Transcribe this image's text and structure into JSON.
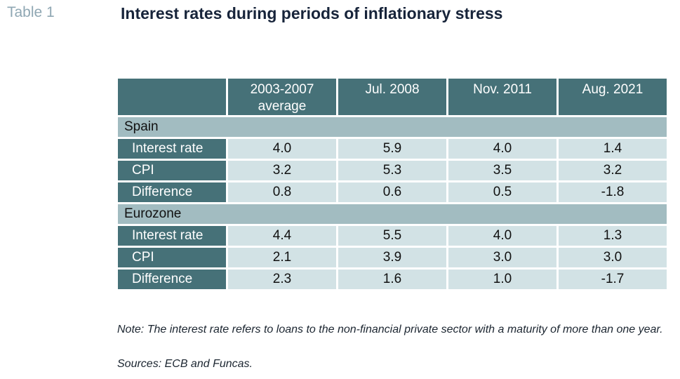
{
  "table_number": "Table 1",
  "title": "Interest rates during periods of inflationary stress",
  "table": {
    "columns": [
      {
        "line1": "2003-2007",
        "line2": "average"
      },
      {
        "line1": "Jul. 2008",
        "line2": ""
      },
      {
        "line1": "Nov. 2011",
        "line2": ""
      },
      {
        "line1": "Aug. 2021",
        "line2": ""
      }
    ],
    "groups": [
      {
        "name": "Spain",
        "rows": [
          {
            "label": "Interest rate",
            "values": [
              "4.0",
              "5.9",
              "4.0",
              "1.4"
            ]
          },
          {
            "label": "CPI",
            "values": [
              "3.2",
              "5.3",
              "3.5",
              "3.2"
            ]
          },
          {
            "label": "Difference",
            "values": [
              "0.8",
              "0.6",
              "0.5",
              "-1.8"
            ]
          }
        ]
      },
      {
        "name": "Eurozone",
        "rows": [
          {
            "label": "Interest rate",
            "values": [
              "4.4",
              "5.5",
              "4.0",
              "1.3"
            ]
          },
          {
            "label": "CPI",
            "values": [
              "2.1",
              "3.9",
              "3.0",
              "3.0"
            ]
          },
          {
            "label": "Difference",
            "values": [
              "2.3",
              "1.6",
              "1.0",
              "-1.7"
            ]
          }
        ]
      }
    ]
  },
  "note": "Note: The interest rate refers to loans to the non-financial private sector with a maturity of more than one year.",
  "sources": "Sources: ECB and Funcas.",
  "colors": {
    "header_bg": "#467178",
    "group_bg": "#a2bcc1",
    "value_bg": "#d2e2e5",
    "table_number": "#8fa7b3",
    "title": "#17243a"
  }
}
